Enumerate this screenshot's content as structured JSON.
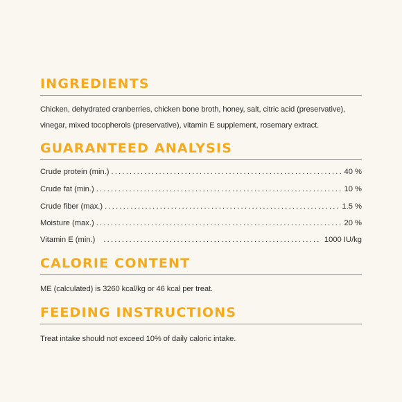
{
  "ingredients": {
    "title": "INGREDIENTS",
    "text": "Chicken, dehydrated cranberries, chicken bone broth, honey, salt, citric acid (preservative), vinegar, mixed tocopherols (preservative), vitamin E supplement, rosemary extract."
  },
  "guaranteed_analysis": {
    "title": "GUARANTEED ANALYSIS",
    "rows": [
      {
        "label": "Crude protein (min.)",
        "value": "40 %"
      },
      {
        "label": "Crude fat (min.)",
        "value": "10 %"
      },
      {
        "label": "Crude fiber (max.)",
        "value": "1.5 %"
      },
      {
        "label": "Moisture (max.)",
        "value": "20 %"
      },
      {
        "label": "Vitamin E (min.)",
        "value": "1000 IU/kg"
      }
    ]
  },
  "calorie_content": {
    "title": "CALORIE CONTENT",
    "text": "ME (calculated) is 3260 kcal/kg or 46 kcal per treat."
  },
  "feeding_instructions": {
    "title": "FEEDING INSTRUCTIONS",
    "text": "Treat intake should not exceed 10% of daily caloric intake."
  },
  "colors": {
    "background": "#f9f7ef",
    "heading": "#f4aa1f",
    "text": "#2d2d2d",
    "rule": "#8a8a8a"
  }
}
